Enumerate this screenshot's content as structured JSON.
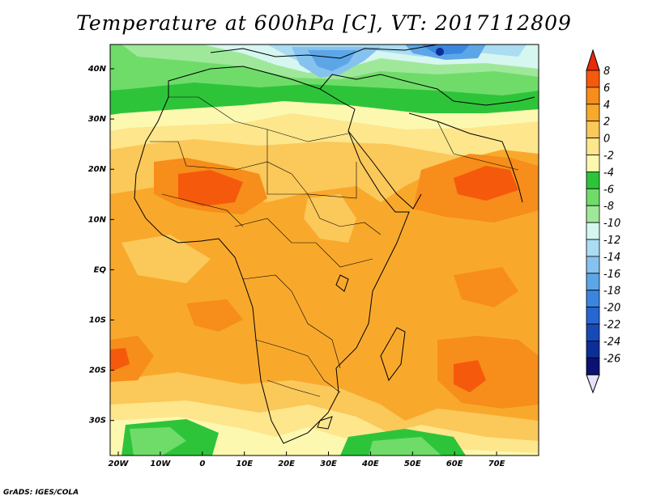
{
  "map": {
    "title": "Temperature at 600hPa [C], VT: 2017112809",
    "longitude_ticks": [
      "20W",
      "10W",
      "0",
      "10E",
      "20E",
      "30E",
      "40E",
      "50E",
      "60E",
      "70E"
    ],
    "latitude_ticks": [
      "40N",
      "30N",
      "20N",
      "10N",
      "EQ",
      "10S",
      "20S",
      "30S"
    ],
    "region": {
      "lon_range": [
        -23,
        80
      ],
      "lat_range": [
        -37,
        45
      ]
    },
    "variable": "Temperature",
    "level": "600hPa",
    "unit": "C",
    "valid_time": "2017112809"
  },
  "colorbar": {
    "labels": [
      "8",
      "6",
      "4",
      "2",
      "0",
      "-2",
      "-4",
      "-6",
      "-8",
      "-10",
      "-12",
      "-14",
      "-16",
      "-18",
      "-20",
      "-22",
      "-24",
      "-26"
    ],
    "colors": [
      "#e82a08",
      "#f55a0c",
      "#f78d1a",
      "#f8a92c",
      "#fbc85a",
      "#fde68c",
      "#fdf8b0",
      "#2ec43a",
      "#6fdc6a",
      "#9fe89a",
      "#d6f6f0",
      "#aadcf2",
      "#86c2ee",
      "#5ca6e8",
      "#3a86de",
      "#2666d0",
      "#174ab6",
      "#0d2e96",
      "#0a1272",
      "#e6e2fc"
    ]
  },
  "credit": "GrADS: IGES/COLA"
}
